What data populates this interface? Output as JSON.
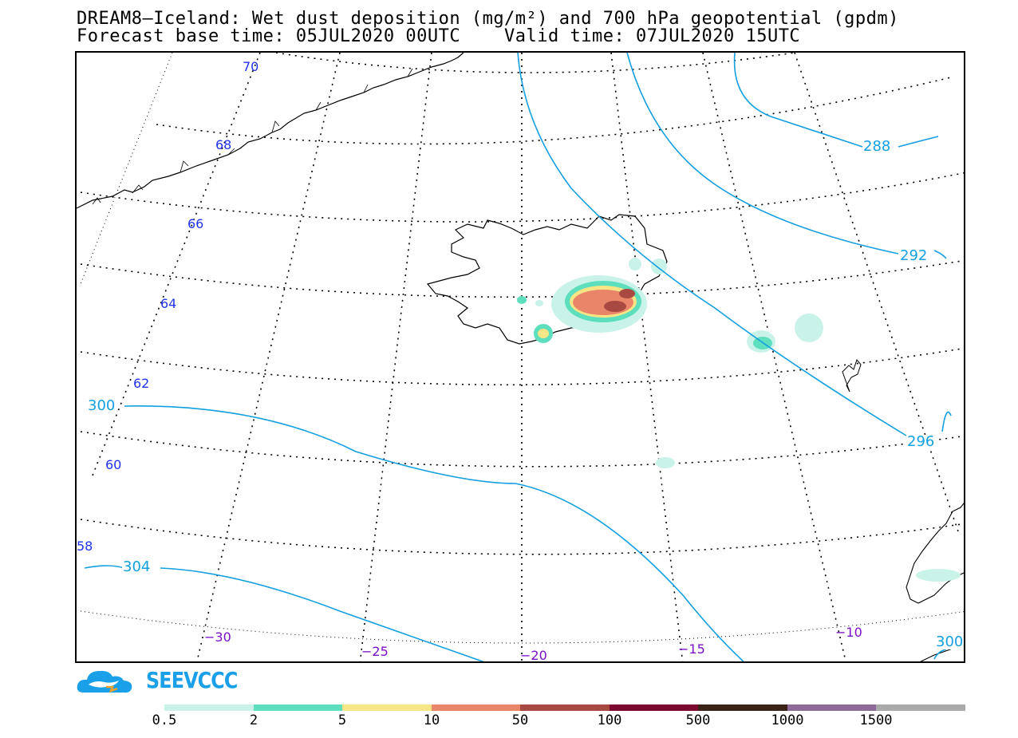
{
  "title": {
    "line1": "DREAM8—Iceland: Wet dust deposition (mg/m²) and 700 hPa geopotential (gpdm)",
    "line2": "Forecast base time: 05JUL2020 00UTC    Valid time: 07JUL2020 15UTC"
  },
  "map": {
    "lat_labels": [
      "70",
      "68",
      "66",
      "64",
      "62",
      "60",
      "58"
    ],
    "lon_labels": [
      "−30",
      "−25",
      "−20",
      "−15",
      "−10"
    ],
    "contour_labels": [
      "288",
      "292",
      "296",
      "300",
      "304",
      "300"
    ],
    "contour_color": "#139fe0",
    "lat_label_color": "#2233ee",
    "lon_label_color": "#7a10c8"
  },
  "logo": {
    "text": "SEEVCCC",
    "color": "#1aa0e8",
    "icon": "cloud-logo-icon"
  },
  "legend": {
    "labels": [
      "0.5",
      "2",
      "5",
      "10",
      "50",
      "100",
      "500",
      "1000",
      "1500"
    ],
    "colors": [
      "#c9f2e9",
      "#5ddfbd",
      "#f8e585",
      "#e9866a",
      "#a94a42",
      "#7d0a2e",
      "#3b2216",
      "#8e6a98",
      "#aaaaaa"
    ]
  }
}
